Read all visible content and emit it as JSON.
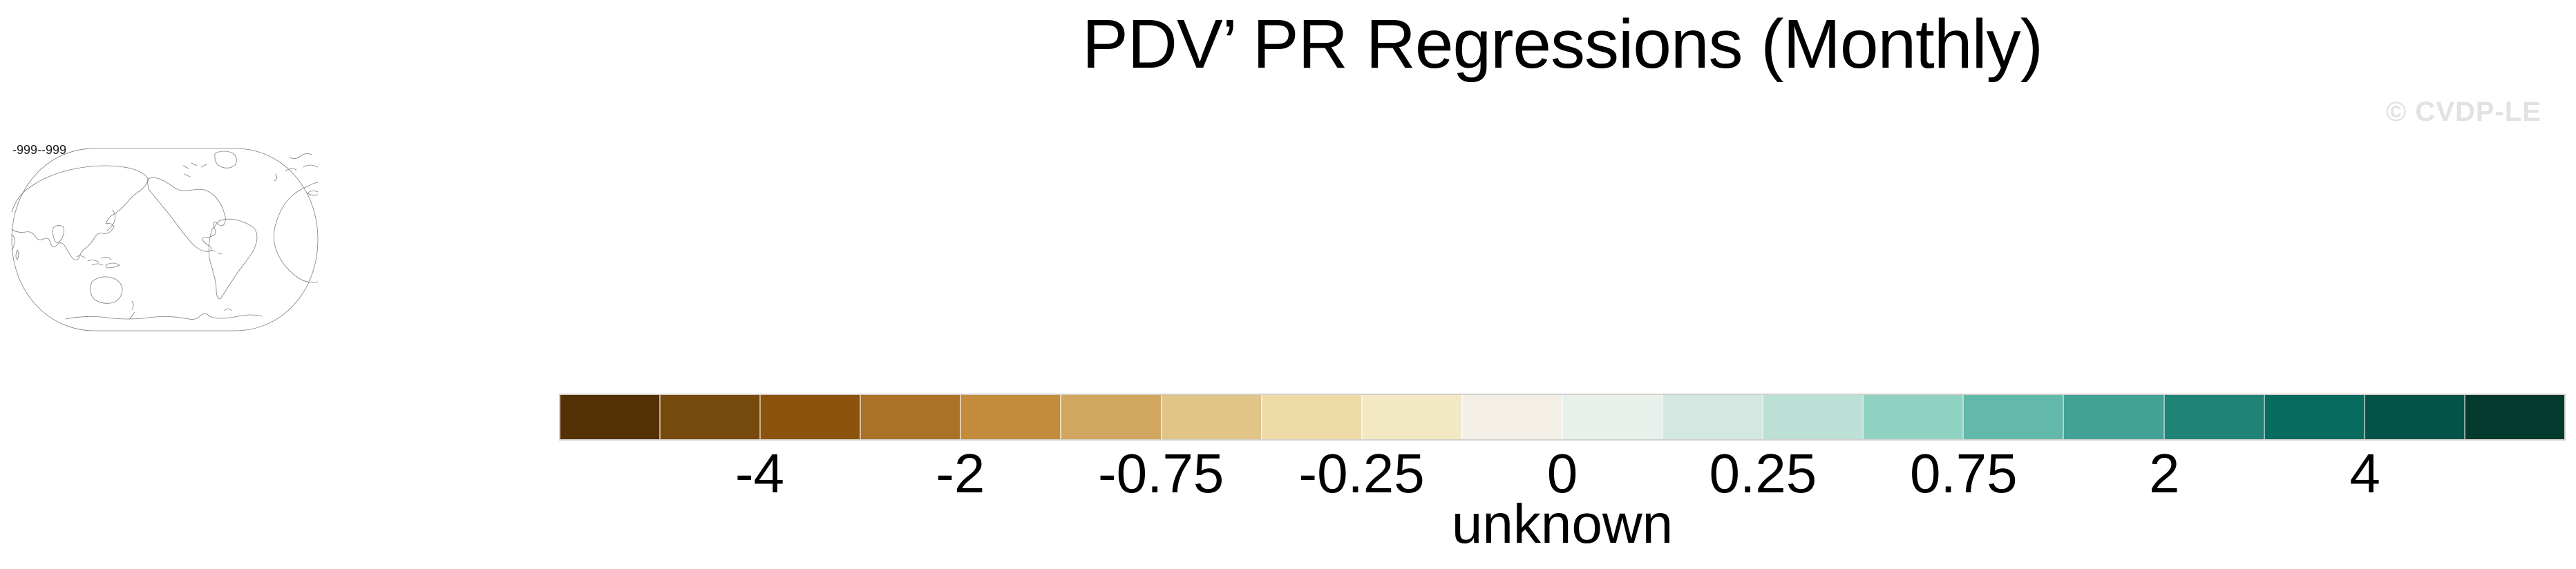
{
  "title": "PDV’ PR Regressions (Monthly)",
  "watermark": "© CVDP-LE",
  "map": {
    "range_label": "-999--999"
  },
  "colorbar": {
    "title": "unknown",
    "colors": [
      "#543005",
      "#764a0c",
      "#8c530c",
      "#aa7128",
      "#c28c3c",
      "#d1a75f",
      "#e0c488",
      "#eedaa4",
      "#f2e8c4",
      "#f3efe7",
      "#e8f0ec",
      "#d2e8e0",
      "#bce0d5",
      "#90d2c2",
      "#63b9a9",
      "#43a195",
      "#218378",
      "#076b60",
      "#045349",
      "#033a2e"
    ],
    "ticks": [
      {
        "label": "-4",
        "pos": 0.1
      },
      {
        "label": "-2",
        "pos": 0.2
      },
      {
        "label": "-0.75",
        "pos": 0.3
      },
      {
        "label": "-0.25",
        "pos": 0.4
      },
      {
        "label": "0",
        "pos": 0.5
      },
      {
        "label": "0.25",
        "pos": 0.6
      },
      {
        "label": "0.75",
        "pos": 0.7
      },
      {
        "label": "2",
        "pos": 0.8
      },
      {
        "label": "4",
        "pos": 0.9
      }
    ]
  },
  "chart_data": {
    "type": "heatmap",
    "title": "PDV’ PR Regressions (Monthly)",
    "colorbar_title": "unknown",
    "colorbar_tick_labels": [
      "-4",
      "-2",
      "-0.75",
      "-0.25",
      "0",
      "0.25",
      "0.75",
      "2",
      "4"
    ],
    "colorbar_colors": [
      "#543005",
      "#764a0c",
      "#8c530c",
      "#aa7128",
      "#c28c3c",
      "#d1a75f",
      "#e0c488",
      "#eedaa4",
      "#f2e8c4",
      "#f3efe7",
      "#e8f0ec",
      "#d2e8e0",
      "#bce0d5",
      "#90d2c2",
      "#63b9a9",
      "#43a195",
      "#218378",
      "#076b60",
      "#045349",
      "#033a2e"
    ],
    "legend_position": "bottom",
    "map_annotation": "-999--999",
    "map_status": "world map rendered as coastline outline only; no data shading visible"
  }
}
